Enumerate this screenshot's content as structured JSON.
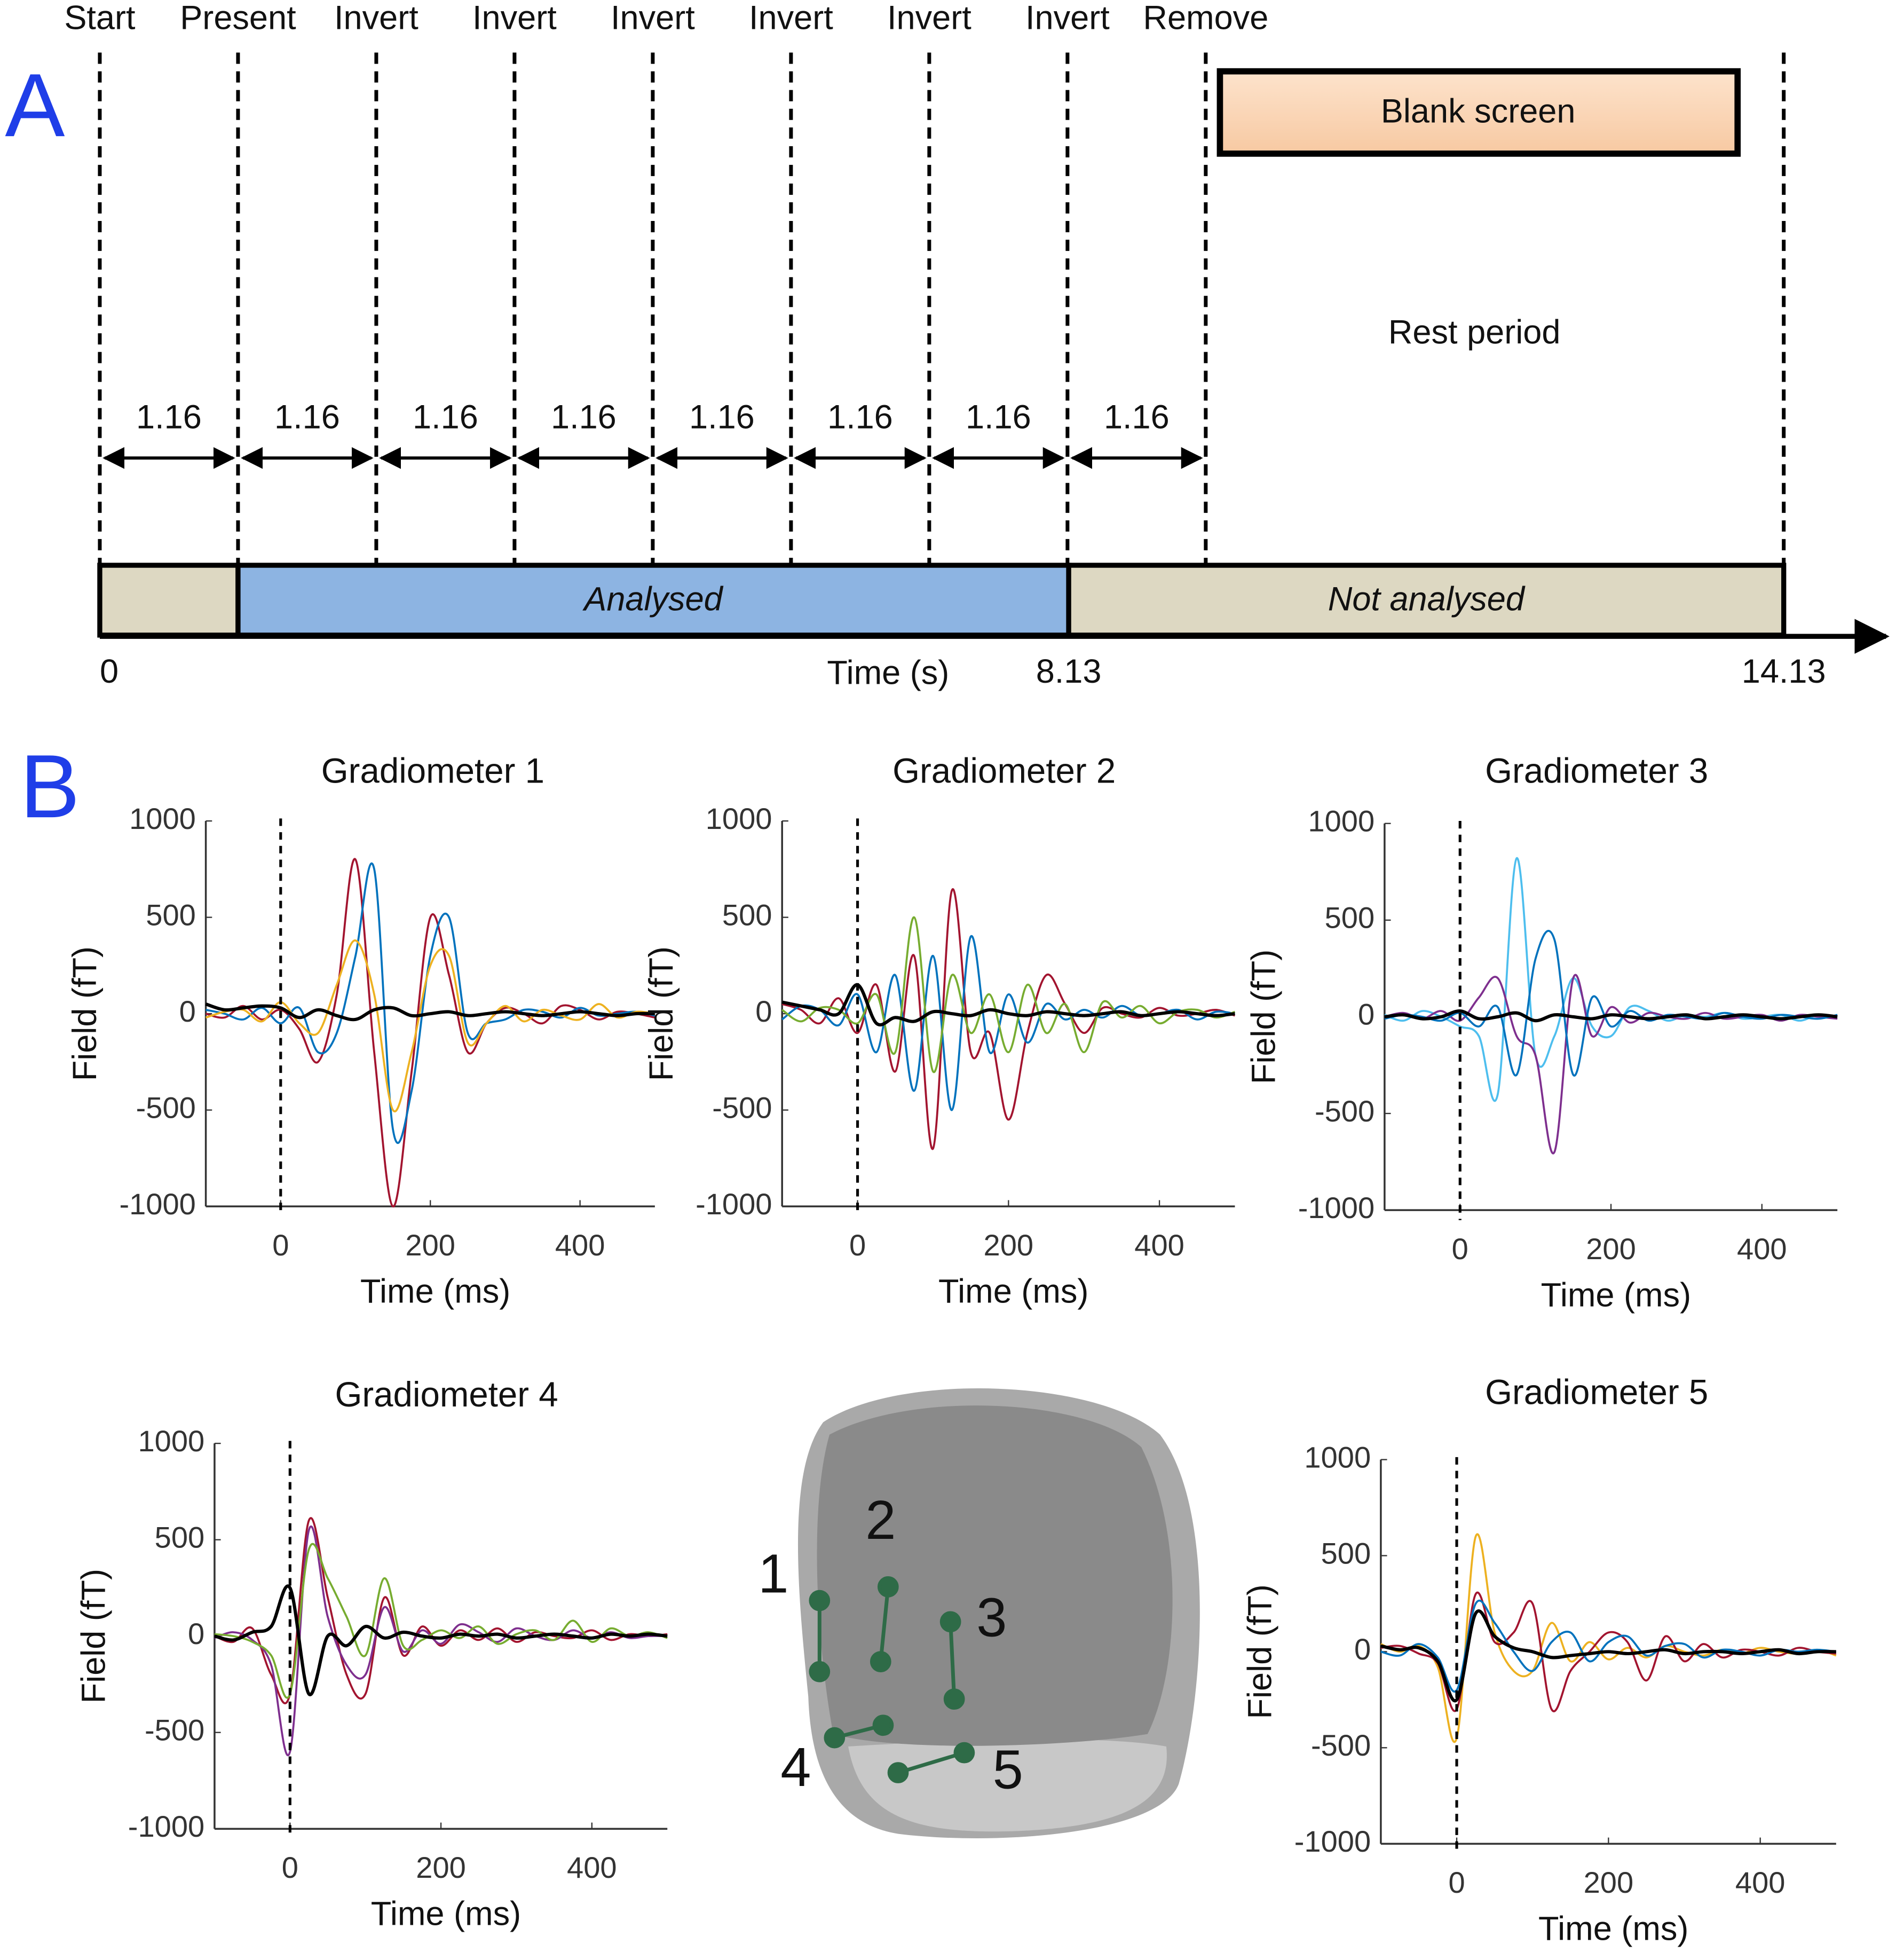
{
  "panel_a": {
    "letter": "A",
    "events": [
      "Start",
      "Present",
      "Invert",
      "Invert",
      "Invert",
      "Invert",
      "Invert",
      "Invert",
      "Remove"
    ],
    "intervals": [
      1.16,
      1.16,
      1.16,
      1.16,
      1.16,
      1.16,
      1.16,
      1.16
    ],
    "xlim": [
      0,
      14.13
    ],
    "xticks": [
      0,
      8.13,
      14.13
    ],
    "xlabel": "Time (s)",
    "analysed": "Analysed",
    "not_analysed": "Not analysed",
    "blank_screen": "Blank screen",
    "rest_period": "Rest period"
  },
  "panel_b_letter": "B",
  "head": {
    "labels": [
      "1",
      "2",
      "3",
      "4",
      "5"
    ]
  },
  "chart_data": [
    {
      "type": "line",
      "title": "Gradiometer 1",
      "xlabel": "Time (ms)",
      "ylabel": "Field (fT)",
      "xlim": [
        -100,
        500
      ],
      "ylim": [
        -1000,
        1000
      ],
      "xticks": [
        0,
        200,
        400
      ],
      "yticks": [
        -1000,
        -500,
        0,
        500,
        1000
      ],
      "vline": 0,
      "x": [
        -100,
        -75,
        -50,
        -25,
        0,
        25,
        50,
        75,
        100,
        125,
        150,
        175,
        200,
        225,
        250,
        275,
        300,
        325,
        350,
        375,
        400,
        425,
        450,
        475,
        500
      ],
      "series": [
        {
          "color": "#a2142f",
          "values": [
            0,
            -20,
            40,
            -30,
            20,
            -80,
            -250,
            100,
            800,
            -200,
            -1000,
            -300,
            500,
            200,
            -200,
            -50,
            30,
            0,
            -50,
            40,
            20,
            -30,
            10,
            0,
            -20
          ]
        },
        {
          "color": "#0072bd",
          "values": [
            20,
            0,
            -30,
            30,
            -50,
            30,
            -200,
            -100,
            300,
            750,
            -600,
            -400,
            300,
            500,
            -100,
            -50,
            -30,
            20,
            10,
            -20,
            30,
            -10,
            0,
            10,
            -10
          ]
        },
        {
          "color": "#edb120",
          "values": [
            -20,
            10,
            20,
            -40,
            60,
            -50,
            -100,
            150,
            380,
            100,
            -500,
            -200,
            250,
            300,
            -150,
            -50,
            40,
            -40,
            20,
            -10,
            -30,
            50,
            -20,
            10,
            0
          ]
        },
        {
          "color": "#000000",
          "values": [
            50,
            20,
            30,
            40,
            30,
            -20,
            20,
            -10,
            -30,
            20,
            30,
            -10,
            0,
            10,
            -10,
            0,
            10,
            0,
            -10,
            0,
            10,
            0,
            -10,
            0,
            0
          ]
        }
      ]
    },
    {
      "type": "line",
      "title": "Gradiometer 2",
      "xlabel": "Time (ms)",
      "ylabel": "Field (fT)",
      "xlim": [
        -100,
        500
      ],
      "ylim": [
        -1000,
        1000
      ],
      "xticks": [
        0,
        200,
        400
      ],
      "yticks": [
        -1000,
        -500,
        0,
        500,
        1000
      ],
      "vline": 0,
      "x": [
        -100,
        -75,
        -50,
        -25,
        0,
        25,
        50,
        75,
        100,
        125,
        150,
        175,
        200,
        225,
        250,
        275,
        300,
        325,
        350,
        375,
        400,
        425,
        450,
        475,
        500
      ],
      "series": [
        {
          "color": "#a2142f",
          "values": [
            50,
            20,
            -50,
            80,
            -100,
            150,
            -300,
            300,
            -700,
            640,
            -200,
            -100,
            -550,
            -100,
            200,
            50,
            -100,
            30,
            0,
            -20,
            30,
            -10,
            0,
            20,
            -10
          ]
        },
        {
          "color": "#0072bd",
          "values": [
            -30,
            40,
            20,
            -60,
            100,
            -200,
            200,
            -400,
            300,
            -500,
            400,
            -200,
            100,
            -150,
            50,
            -30,
            20,
            -20,
            40,
            -10,
            0,
            20,
            -30,
            10,
            0
          ]
        },
        {
          "color": "#77ac30",
          "values": [
            20,
            -40,
            30,
            20,
            -50,
            100,
            -200,
            500,
            -300,
            200,
            -100,
            100,
            -200,
            150,
            -100,
            50,
            -200,
            60,
            -20,
            40,
            -50,
            10,
            20,
            -20,
            10
          ]
        },
        {
          "color": "#000000",
          "values": [
            60,
            40,
            20,
            0,
            150,
            -50,
            -20,
            -40,
            10,
            0,
            -10,
            20,
            0,
            -10,
            10,
            0,
            -10,
            0,
            10,
            -10,
            0,
            10,
            0,
            -10,
            0
          ]
        }
      ]
    },
    {
      "type": "line",
      "title": "Gradiometer 3",
      "xlabel": "Time (ms)",
      "ylabel": "Field (fT)",
      "xlim": [
        -100,
        500
      ],
      "ylim": [
        -1000,
        1000
      ],
      "xticks": [
        0,
        200,
        400
      ],
      "yticks": [
        -1000,
        -500,
        0,
        500,
        1000
      ],
      "vline": 0,
      "x": [
        -100,
        -75,
        -50,
        -25,
        0,
        25,
        50,
        75,
        100,
        125,
        150,
        175,
        200,
        225,
        250,
        275,
        300,
        325,
        350,
        375,
        400,
        425,
        450,
        475,
        500
      ],
      "series": [
        {
          "color": "#4dbeee",
          "values": [
            10,
            -20,
            30,
            0,
            -50,
            -100,
            -400,
            820,
            -200,
            -100,
            200,
            -50,
            -100,
            50,
            30,
            -20,
            10,
            0,
            20,
            -10,
            0,
            10,
            -20,
            10,
            0
          ]
        },
        {
          "color": "#7e2f8e",
          "values": [
            0,
            20,
            -10,
            30,
            -20,
            100,
            200,
            -100,
            -200,
            -700,
            200,
            -100,
            50,
            -30,
            20,
            0,
            -10,
            20,
            -10,
            0,
            10,
            -20,
            10,
            0,
            -10
          ]
        },
        {
          "color": "#0072bd",
          "values": [
            -10,
            10,
            0,
            -20,
            20,
            -50,
            50,
            -300,
            300,
            400,
            -300,
            100,
            -50,
            30,
            -20,
            10,
            0,
            -10,
            20,
            0,
            -10,
            10,
            0,
            -10,
            10
          ]
        },
        {
          "color": "#000000",
          "values": [
            0,
            10,
            -10,
            0,
            30,
            -10,
            0,
            20,
            -20,
            10,
            0,
            -10,
            10,
            0,
            -10,
            0,
            10,
            -10,
            0,
            10,
            0,
            -10,
            0,
            10,
            0
          ]
        }
      ]
    },
    {
      "type": "line",
      "title": "Gradiometer 4",
      "xlabel": "Time (ms)",
      "ylabel": "Field (fT)",
      "xlim": [
        -100,
        500
      ],
      "ylim": [
        -1000,
        1000
      ],
      "xticks": [
        0,
        200,
        400
      ],
      "yticks": [
        -1000,
        -500,
        0,
        500,
        1000
      ],
      "vline": 0,
      "x": [
        -100,
        -75,
        -50,
        -25,
        0,
        25,
        50,
        75,
        100,
        125,
        150,
        175,
        200,
        225,
        250,
        275,
        300,
        325,
        350,
        375,
        400,
        425,
        450,
        475,
        500
      ],
      "series": [
        {
          "color": "#a2142f",
          "values": [
            0,
            -30,
            40,
            -200,
            -300,
            600,
            200,
            -200,
            -300,
            200,
            -100,
            50,
            -50,
            30,
            -20,
            40,
            -30,
            20,
            0,
            -10,
            30,
            -20,
            10,
            0,
            10
          ]
        },
        {
          "color": "#7e2f8e",
          "values": [
            -10,
            20,
            -20,
            -150,
            -600,
            550,
            100,
            -150,
            -200,
            150,
            -80,
            30,
            -40,
            60,
            20,
            -30,
            40,
            0,
            -20,
            30,
            -10,
            20,
            -10,
            0,
            0
          ]
        },
        {
          "color": "#77ac30",
          "values": [
            10,
            0,
            -30,
            -100,
            -300,
            450,
            300,
            100,
            -100,
            300,
            -50,
            -20,
            30,
            -10,
            50,
            -40,
            10,
            30,
            -20,
            80,
            -30,
            40,
            0,
            20,
            -10
          ]
        },
        {
          "color": "#000000",
          "values": [
            0,
            -20,
            20,
            50,
            250,
            -300,
            0,
            -50,
            50,
            -10,
            20,
            0,
            -10,
            10,
            0,
            10,
            -10,
            0,
            10,
            0,
            -10,
            10,
            0,
            10,
            0
          ]
        }
      ]
    },
    {
      "type": "line",
      "title": "Gradiometer 5",
      "xlabel": "Time (ms)",
      "ylabel": "Field (fT)",
      "xlim": [
        -100,
        500
      ],
      "ylim": [
        -1000,
        1000
      ],
      "xticks": [
        0,
        200,
        400
      ],
      "yticks": [
        -1000,
        -500,
        0,
        500,
        1000
      ],
      "vline": 0,
      "x": [
        -100,
        -75,
        -50,
        -25,
        0,
        25,
        50,
        75,
        100,
        125,
        150,
        175,
        200,
        225,
        250,
        275,
        300,
        325,
        350,
        375,
        400,
        425,
        450,
        475,
        500
      ],
      "series": [
        {
          "color": "#edb120",
          "values": [
            40,
            0,
            30,
            -80,
            -450,
            600,
            100,
            -100,
            -100,
            150,
            -50,
            50,
            -40,
            20,
            -30,
            30,
            0,
            -20,
            10,
            -10,
            20,
            0,
            -10,
            10,
            -20
          ]
        },
        {
          "color": "#a2142f",
          "values": [
            20,
            30,
            -10,
            -60,
            -300,
            300,
            50,
            100,
            250,
            -300,
            -100,
            0,
            100,
            50,
            -150,
            80,
            -50,
            40,
            -30,
            10,
            0,
            -20,
            20,
            0,
            -10
          ]
        },
        {
          "color": "#0072bd",
          "values": [
            0,
            -20,
            40,
            -30,
            -200,
            250,
            150,
            0,
            -100,
            50,
            100,
            -50,
            50,
            80,
            -20,
            30,
            40,
            -30,
            10,
            0,
            -20,
            10,
            0,
            10,
            0
          ]
        },
        {
          "color": "#000000",
          "values": [
            30,
            10,
            20,
            -50,
            -250,
            200,
            80,
            20,
            0,
            -30,
            -20,
            -10,
            0,
            -10,
            0,
            10,
            -10,
            0,
            0,
            -10,
            0,
            10,
            -10,
            0,
            0
          ]
        }
      ]
    }
  ]
}
